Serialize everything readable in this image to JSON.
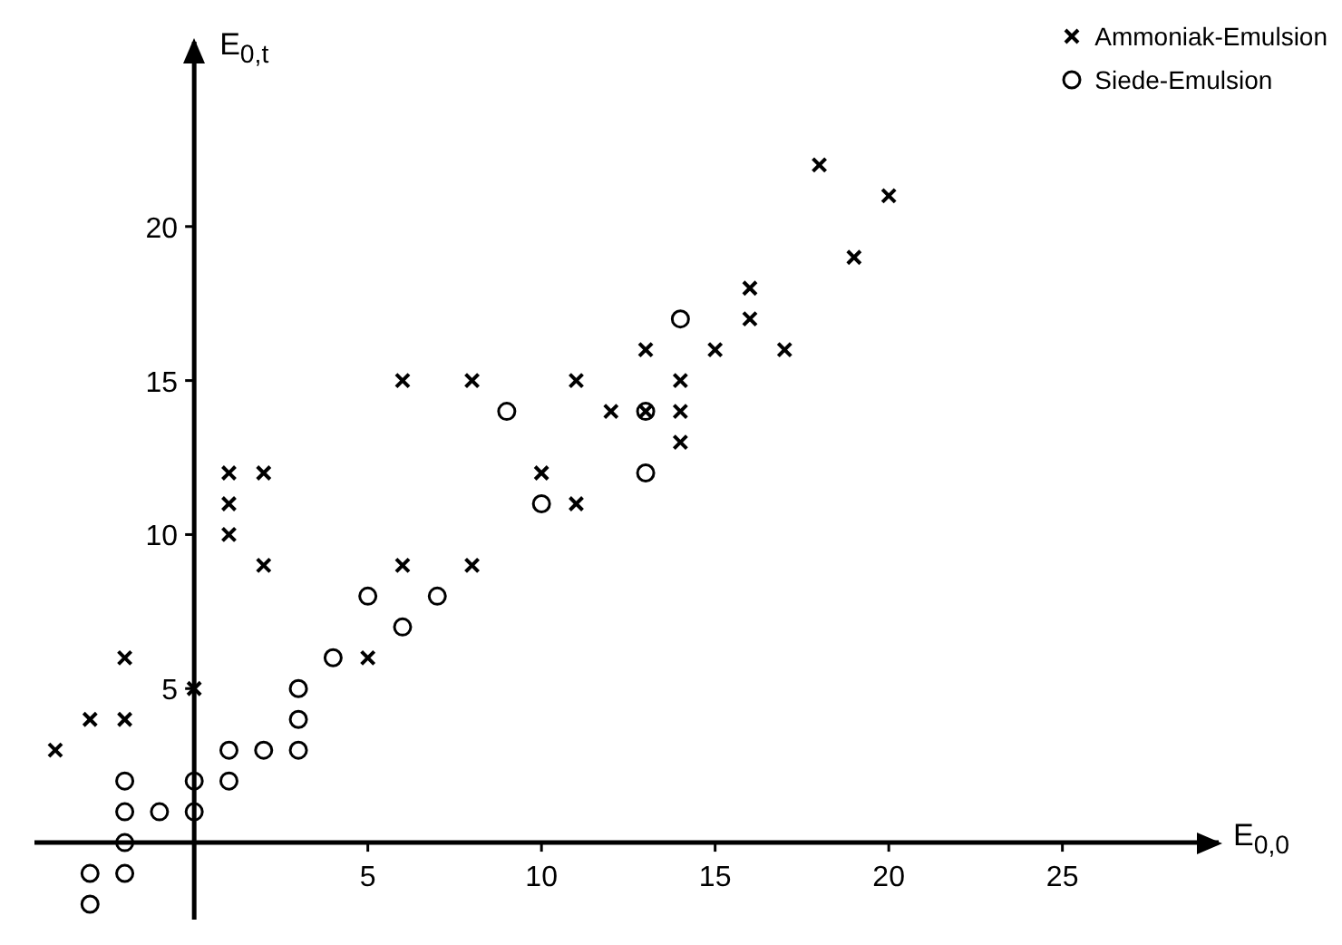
{
  "chart_data": {
    "type": "scatter",
    "xlabel": "E$_{0,0}$",
    "ylabel": "E$_{0,t}$",
    "xlim": [
      -4.6,
      29.5
    ],
    "ylim": [
      -2.5,
      26
    ],
    "xticks": [
      5,
      10,
      15,
      20,
      25
    ],
    "yticks": [
      5,
      10,
      15,
      20
    ],
    "legend": "top right",
    "series": [
      {
        "name": "Ammoniak-Emulsion",
        "color": "#000000",
        "marker": "cross",
        "x": [
          -4,
          -3,
          -2,
          -2,
          0,
          1,
          1,
          1,
          2,
          2,
          5,
          6,
          6,
          8,
          8,
          10,
          11,
          11,
          12,
          13,
          13,
          14,
          14,
          14,
          15,
          16,
          16,
          17,
          18,
          19,
          20
        ],
        "values": [
          3,
          4,
          4,
          6,
          5,
          10,
          11,
          12,
          12,
          9,
          6,
          9,
          15,
          9,
          15,
          12,
          11,
          15,
          14,
          14,
          16,
          13,
          14,
          15,
          16,
          17,
          18,
          16,
          22,
          19,
          21
        ]
      },
      {
        "name": "Siede-Emulsion",
        "color": "#000000",
        "marker": "circle",
        "x": [
          -3,
          -3,
          -2,
          -2,
          -2,
          -2,
          -1,
          0,
          0,
          1,
          1,
          2,
          3,
          3,
          3,
          4,
          5,
          6,
          7,
          9,
          10,
          13,
          13,
          14
        ],
        "values": [
          -2,
          -1,
          -1,
          0,
          1,
          2,
          1,
          1,
          2,
          2,
          3,
          3,
          3,
          4,
          5,
          6,
          8,
          7,
          8,
          14,
          11,
          12,
          14,
          17
        ]
      }
    ]
  }
}
